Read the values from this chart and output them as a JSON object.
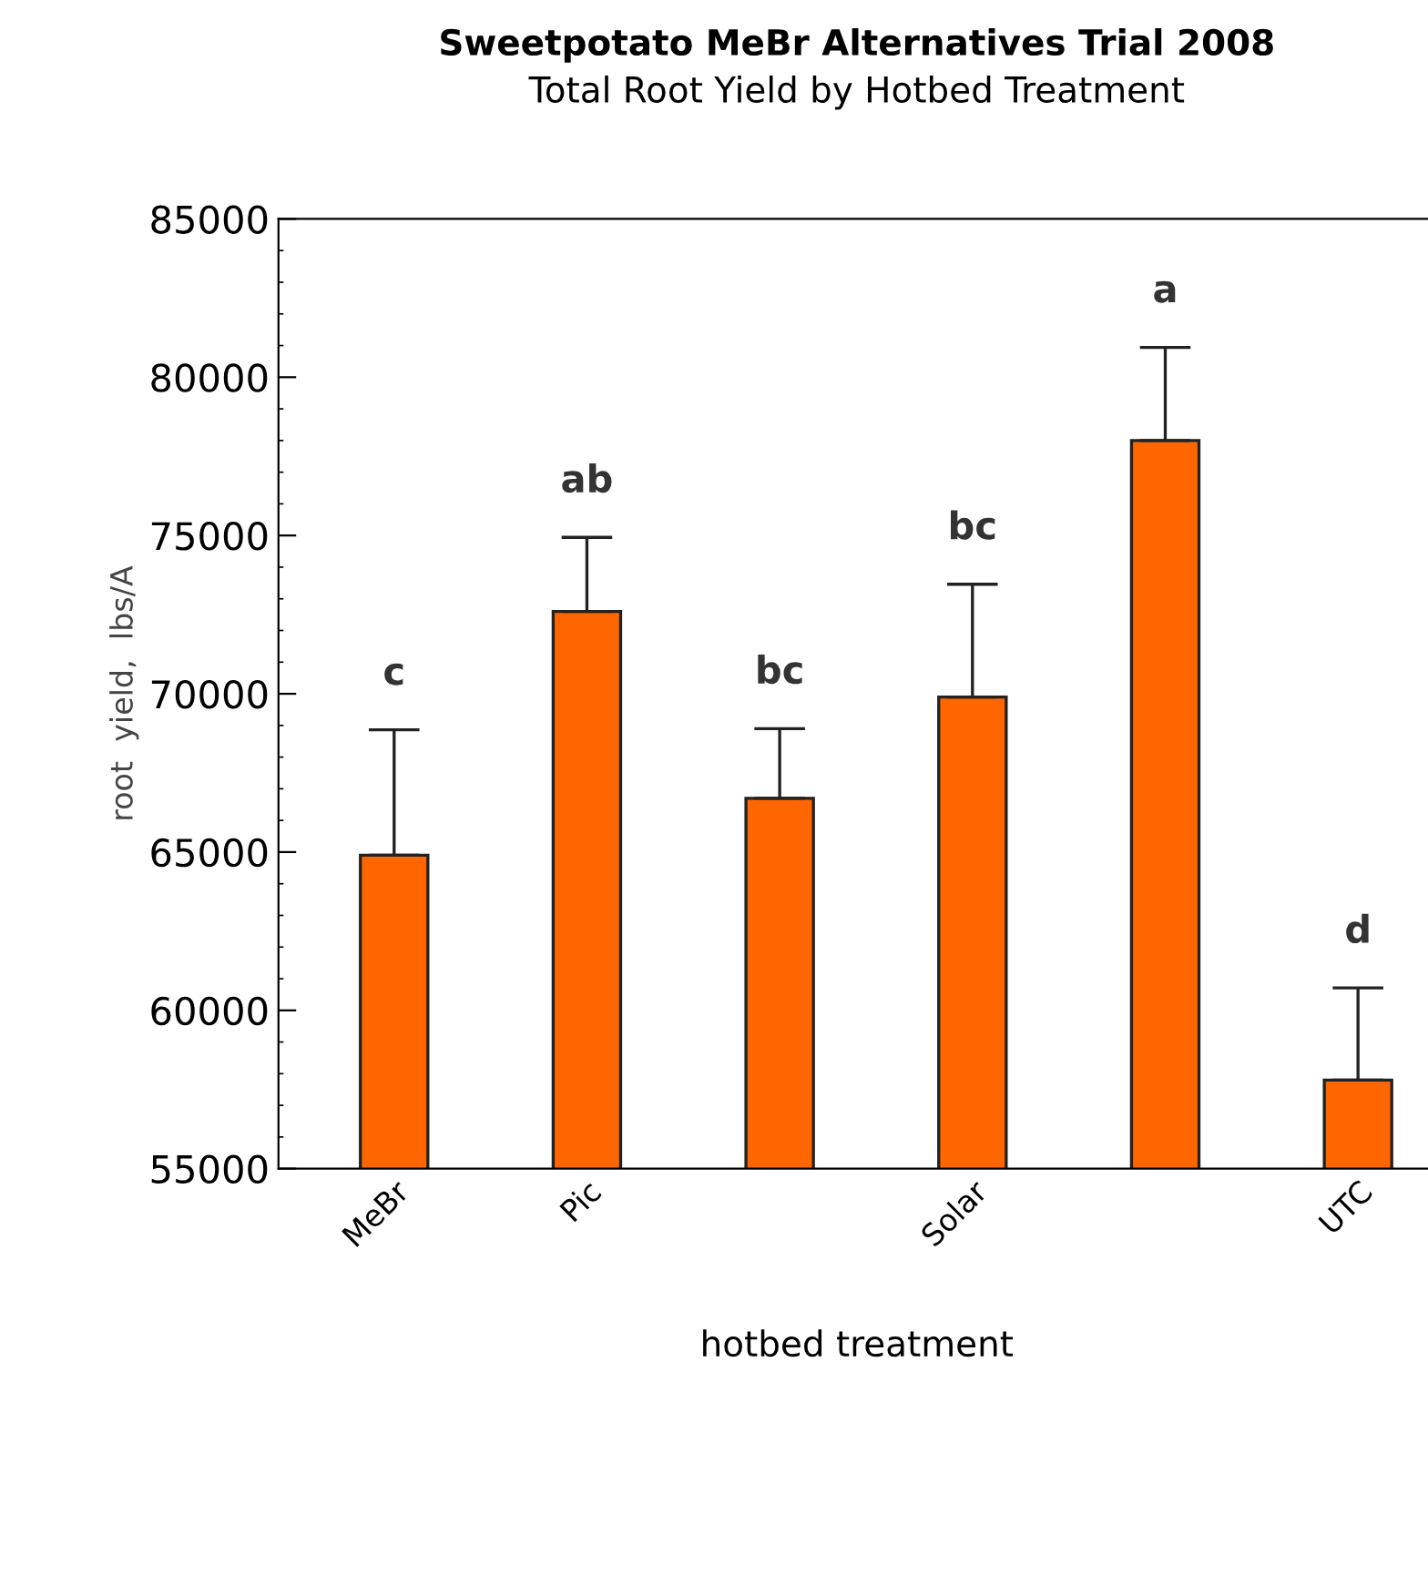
{
  "chart_data": {
    "type": "bar",
    "title": "Sweetpotato MeBr Alternatives Trial 2008",
    "subtitle": "Total Root Yield by Hotbed Treatment",
    "xlabel": "hotbed treatment",
    "ylabel": "root  yield,  lbs/A",
    "categories": [
      "MeBr",
      "Pic",
      null,
      "Solar",
      null,
      "UTC"
    ],
    "values": [
      64900,
      72600,
      66700,
      69900,
      78000,
      57800
    ],
    "errors": [
      3960,
      2340,
      2200,
      3560,
      2940,
      2910
    ],
    "color": "#ff6600",
    "ylim": [
      55000,
      85000
    ],
    "yticks": [
      55000,
      60000,
      65000,
      70000,
      75000,
      80000,
      85000
    ],
    "annotations": [
      "c",
      "ab",
      "bc",
      "bc",
      "a",
      "d"
    ],
    "grid": false,
    "legend": false
  }
}
